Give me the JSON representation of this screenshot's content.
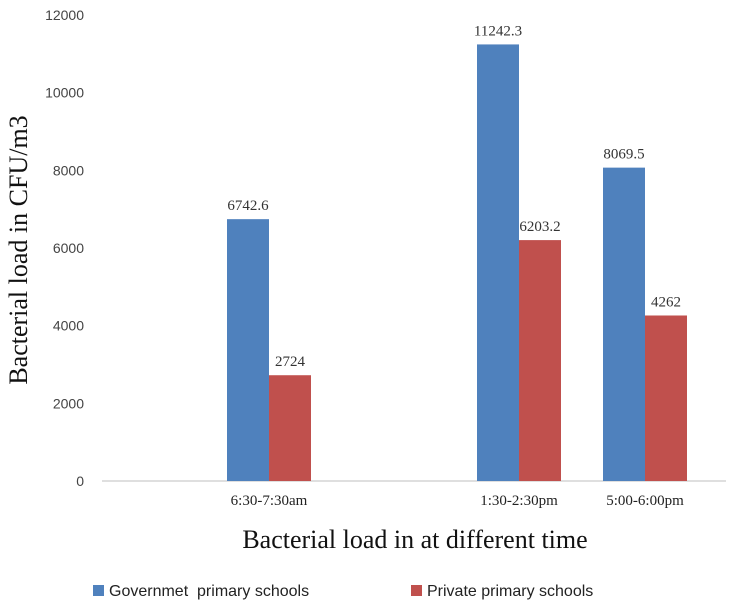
{
  "chart_data": {
    "type": "bar",
    "title": "",
    "xlabel": "Bacterial load in at different time",
    "ylabel": "Bacterial load in CFU/m3",
    "ylim": [
      0,
      12000
    ],
    "yticks": [
      0,
      2000,
      4000,
      6000,
      8000,
      10000,
      12000
    ],
    "categories": [
      "6:30-7:30am",
      "1:30-2:30pm",
      "5:00-6:00pm"
    ],
    "series": [
      {
        "name": "Governmet  primary schools",
        "color": "#4F81BD",
        "values": [
          6742.6,
          11242.3,
          8069.5
        ],
        "labels": [
          "6742.6",
          "11242.3",
          "8069.5"
        ]
      },
      {
        "name": "Private primary schools",
        "color": "#C0504D",
        "values": [
          2724,
          6203.2,
          4262
        ],
        "labels": [
          "2724",
          "6203.2",
          "4262"
        ]
      }
    ],
    "grid": false,
    "legend_position": "bottom"
  }
}
